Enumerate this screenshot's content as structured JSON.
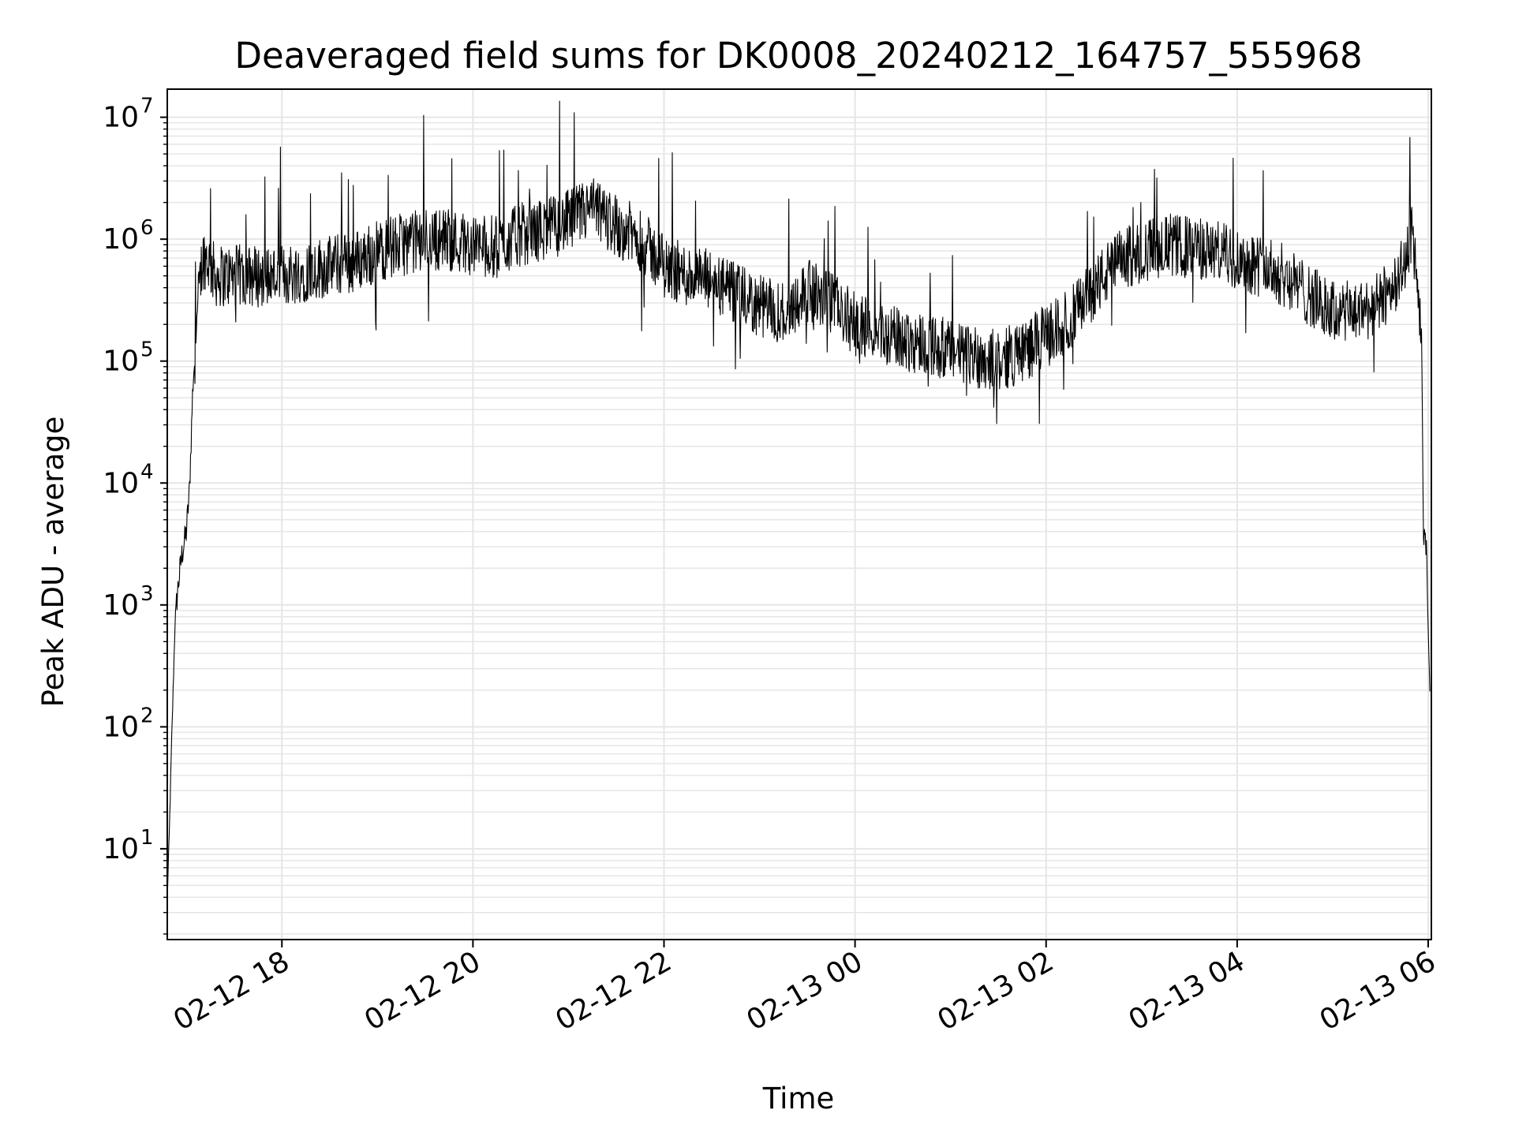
{
  "chart_data": {
    "type": "line",
    "title": "Deaveraged field sums for DK0008_20240212_164757_555968",
    "xlabel": "Time",
    "ylabel": "Peak ADU - average",
    "x_scale": "time",
    "y_scale": "log",
    "xlim": [
      "2024-02-12 16:48",
      "2024-02-13 06:02"
    ],
    "ylim": [
      1.8,
      17000000
    ],
    "grid": true,
    "grid_color": "#e6e6e6",
    "line_color": "#000000",
    "x_ticks": [
      {
        "t": "2024-02-12 18:00",
        "label": "02-12 18"
      },
      {
        "t": "2024-02-12 20:00",
        "label": "02-12 20"
      },
      {
        "t": "2024-02-12 22:00",
        "label": "02-12 22"
      },
      {
        "t": "2024-02-13 00:00",
        "label": "02-13 00"
      },
      {
        "t": "2024-02-13 02:00",
        "label": "02-13 02"
      },
      {
        "t": "2024-02-13 04:00",
        "label": "02-13 04"
      },
      {
        "t": "2024-02-13 06:00",
        "label": "02-13 06"
      }
    ],
    "y_ticks": [
      {
        "value": 10,
        "base": "10",
        "exp": "1"
      },
      {
        "value": 100,
        "base": "10",
        "exp": "2"
      },
      {
        "value": 1000,
        "base": "10",
        "exp": "3"
      },
      {
        "value": 10000,
        "base": "10",
        "exp": "4"
      },
      {
        "value": 100000,
        "base": "10",
        "exp": "5"
      },
      {
        "value": 1000000,
        "base": "10",
        "exp": "6"
      },
      {
        "value": 10000000,
        "base": "10",
        "exp": "7"
      }
    ],
    "series": [
      {
        "x": [
          "2024-02-12 16:48",
          "2024-02-12 16:49",
          "2024-02-12 16:51",
          "2024-02-12 16:53",
          "2024-02-12 16:55",
          "2024-02-12 16:57",
          "2024-02-12 17:00",
          "2024-02-12 17:02",
          "2024-02-12 17:04",
          "2024-02-12 17:07",
          "2024-02-12 17:10",
          "2024-02-12 17:13",
          "2024-02-12 17:18",
          "2024-02-12 17:30",
          "2024-02-12 17:45",
          "2024-02-12 18:00",
          "2024-02-12 18:15",
          "2024-02-12 18:30",
          "2024-02-12 18:45",
          "2024-02-12 19:00",
          "2024-02-12 19:15",
          "2024-02-12 19:30",
          "2024-02-12 19:45",
          "2024-02-12 20:00",
          "2024-02-12 20:15",
          "2024-02-12 20:30",
          "2024-02-12 20:45",
          "2024-02-12 21:00",
          "2024-02-12 21:15",
          "2024-02-12 21:30",
          "2024-02-12 21:45",
          "2024-02-12 22:00",
          "2024-02-12 22:15",
          "2024-02-12 22:30",
          "2024-02-12 22:45",
          "2024-02-12 23:00",
          "2024-02-12 23:15",
          "2024-02-12 23:30",
          "2024-02-12 23:45",
          "2024-02-13 00:00",
          "2024-02-13 00:15",
          "2024-02-13 00:30",
          "2024-02-13 00:45",
          "2024-02-13 01:00",
          "2024-02-13 01:15",
          "2024-02-13 01:30",
          "2024-02-13 01:45",
          "2024-02-13 02:00",
          "2024-02-13 02:15",
          "2024-02-13 02:30",
          "2024-02-13 02:45",
          "2024-02-13 03:00",
          "2024-02-13 03:15",
          "2024-02-13 03:30",
          "2024-02-13 03:45",
          "2024-02-13 04:00",
          "2024-02-13 04:15",
          "2024-02-13 04:30",
          "2024-02-13 04:45",
          "2024-02-13 05:00",
          "2024-02-13 05:15",
          "2024-02-13 05:30",
          "2024-02-13 05:45",
          "2024-02-13 05:50",
          "2024-02-13 05:53",
          "2024-02-13 05:56",
          "2024-02-13 05:57",
          "2024-02-13 05:59",
          "2024-02-13 06:01"
        ],
        "y": [
          4,
          10,
          100,
          800,
          1500,
          2500,
          4000,
          9000,
          60000,
          250000,
          700000,
          700000,
          500000,
          500000,
          500000,
          500000,
          550000,
          600000,
          650000,
          800000,
          900000,
          1000000,
          1000000,
          900000,
          850000,
          1100000,
          1200000,
          1400000,
          1800000,
          1300000,
          1000000,
          600000,
          500000,
          450000,
          350000,
          280000,
          250000,
          380000,
          300000,
          200000,
          170000,
          150000,
          140000,
          120000,
          110000,
          100000,
          120000,
          160000,
          220000,
          400000,
          650000,
          800000,
          900000,
          850000,
          800000,
          700000,
          600000,
          500000,
          350000,
          250000,
          250000,
          300000,
          600000,
          1200000,
          500000,
          100000,
          4000,
          2500,
          200
        ]
      }
    ]
  }
}
